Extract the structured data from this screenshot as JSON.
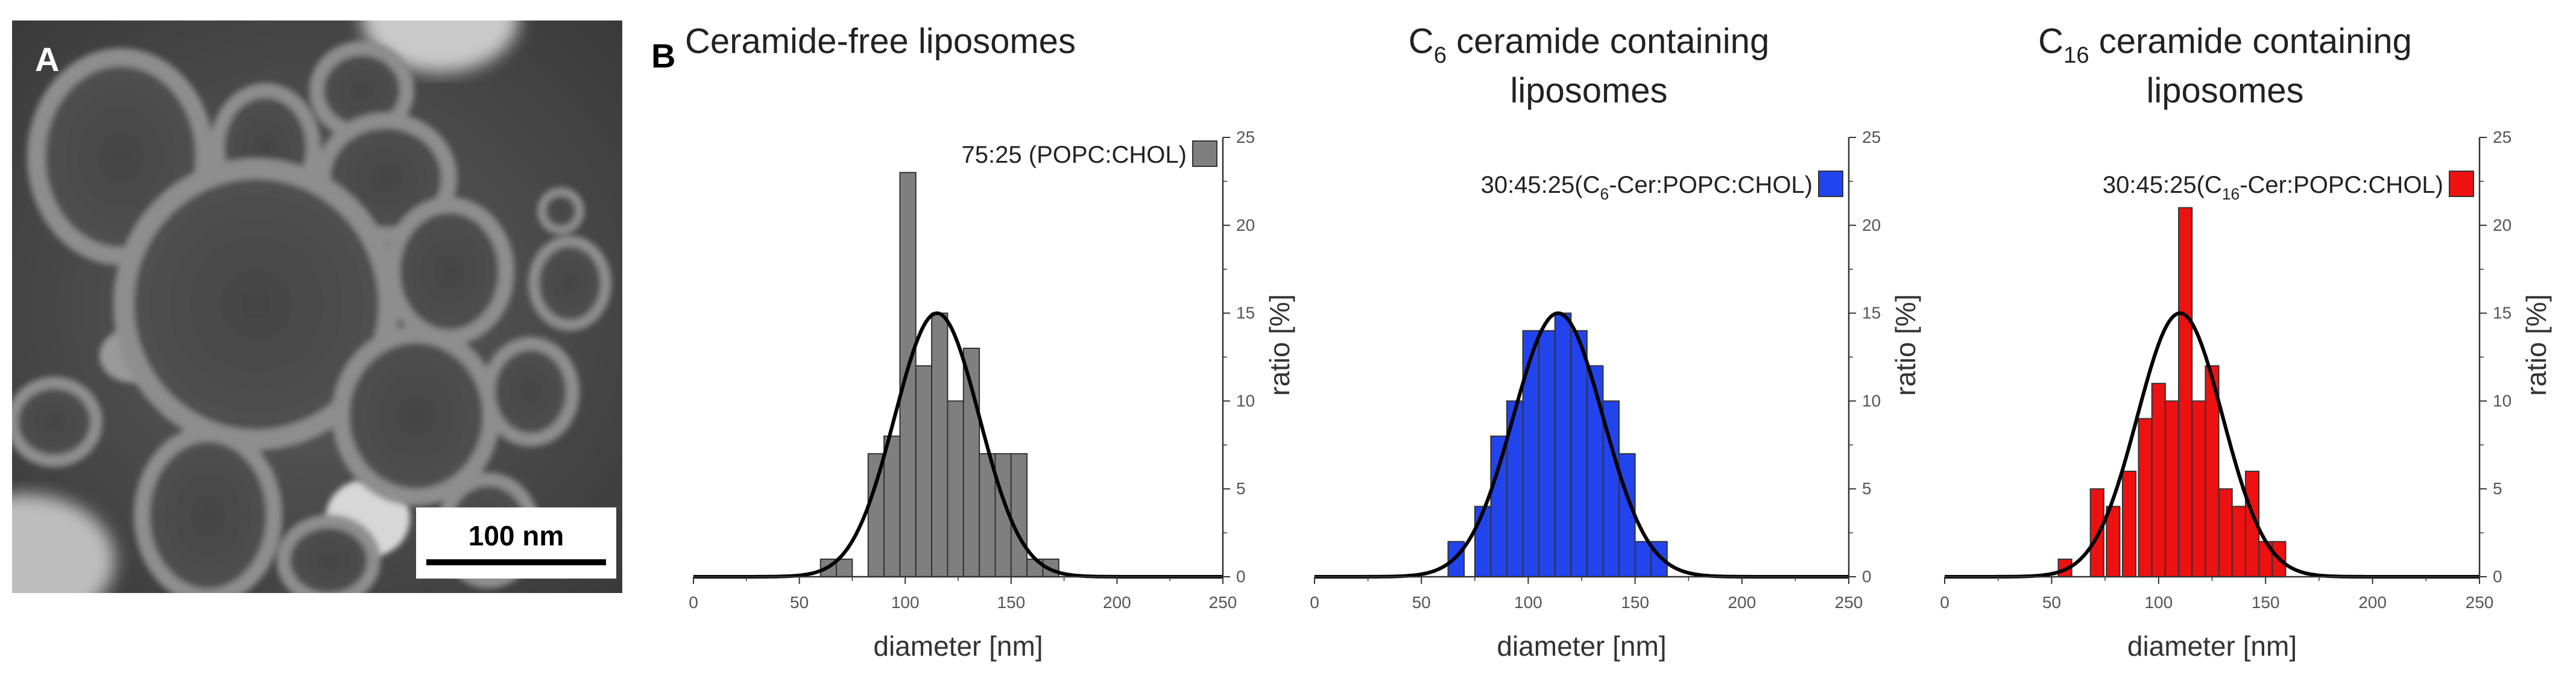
{
  "panel_a": {
    "letter": "A",
    "scale_bar_label": "100 nm"
  },
  "panel_b": {
    "letter": "B"
  },
  "colors": {
    "gray": "#7f7f7f",
    "blue": "#2244ee",
    "red": "#ee1111",
    "fit": "#000000"
  },
  "chart_data": [
    {
      "type": "bar",
      "title": "Ceramide-free liposomes",
      "title_parts": [
        {
          "text": "Ceramide-free liposomes"
        }
      ],
      "xlabel": "diameter [nm]",
      "ylabel": "ratio [%]",
      "xlim": [
        0,
        250
      ],
      "ylim": [
        0,
        25
      ],
      "xticks": [
        "0",
        "50",
        "100",
        "150",
        "200",
        "250"
      ],
      "yticks": [
        "0",
        "5",
        "10",
        "15",
        "20",
        "25"
      ],
      "bin_width": 7.5,
      "bin_centers": [
        63.75,
        71.25,
        86.25,
        93.75,
        101.25,
        108.75,
        116.25,
        123.75,
        131.25,
        138.75,
        146.25,
        153.75,
        161.25,
        168.75
      ],
      "values": [
        1,
        1,
        7,
        8,
        23,
        12,
        15,
        10,
        13,
        7,
        7,
        7,
        1,
        1
      ],
      "fit": {
        "type": "gaussian",
        "mean": 115,
        "sd": 20,
        "amplitude": 15
      },
      "legend_parts": [
        {
          "text": "75:25 (POPC:CHOL)"
        }
      ],
      "color_key": "gray"
    },
    {
      "type": "bar",
      "title": "C6 ceramide containing liposomes",
      "title_parts": [
        {
          "text": "C"
        },
        {
          "text": "6",
          "sub": true
        },
        {
          "text": " ceramide containing"
        }
      ],
      "title_line2": "liposomes",
      "xlabel": "diameter [nm]",
      "ylabel": "ratio [%]",
      "xlim": [
        0,
        250
      ],
      "ylim": [
        0,
        25
      ],
      "xticks": [
        "0",
        "50",
        "100",
        "150",
        "200",
        "250"
      ],
      "yticks": [
        "0",
        "5",
        "10",
        "15",
        "20",
        "25"
      ],
      "bin_width": 7.5,
      "bin_centers": [
        66.25,
        78.75,
        86.25,
        93.75,
        101.25,
        108.75,
        116.25,
        123.75,
        131.25,
        138.75,
        146.25,
        153.75,
        161.25
      ],
      "values": [
        2,
        4,
        8,
        10,
        14,
        14,
        15,
        14,
        12,
        10,
        7,
        2,
        2
      ],
      "fit": {
        "type": "gaussian",
        "mean": 114,
        "sd": 21,
        "amplitude": 15
      },
      "legend_parts": [
        {
          "text": "30:45:25(C"
        },
        {
          "text": "6",
          "sub": true
        },
        {
          "text": "-Cer:POPC:CHOL)"
        }
      ],
      "color_key": "blue"
    },
    {
      "type": "bar",
      "title": "C16 ceramide containing liposomes",
      "title_parts": [
        {
          "text": "C"
        },
        {
          "text": "16",
          "sub": true
        },
        {
          "text": " ceramide containing"
        }
      ],
      "title_line2": "liposomes",
      "xlabel": "diameter [nm]",
      "ylabel": "ratio [%]",
      "xlim": [
        0,
        250
      ],
      "ylim": [
        0,
        25
      ],
      "xticks": [
        "0",
        "50",
        "100",
        "150",
        "200",
        "250"
      ],
      "yticks": [
        "0",
        "5",
        "10",
        "15",
        "20",
        "25"
      ],
      "bin_width": 6.25,
      "bin_centers": [
        56.25,
        71.25,
        78.75,
        86.25,
        93.75,
        100.0,
        106.25,
        112.5,
        118.75,
        125.0,
        131.25,
        137.5,
        143.75,
        150.0,
        156.25
      ],
      "values": [
        1,
        5,
        4,
        6,
        9,
        11,
        10,
        21,
        10,
        12,
        5,
        4,
        6,
        2,
        2
      ],
      "fit": {
        "type": "gaussian",
        "mean": 110,
        "sd": 20,
        "amplitude": 15
      },
      "legend_parts": [
        {
          "text": "30:45:25(C"
        },
        {
          "text": "16",
          "sub": true
        },
        {
          "text": "-Cer:POPC:CHOL)"
        }
      ],
      "color_key": "red"
    }
  ]
}
